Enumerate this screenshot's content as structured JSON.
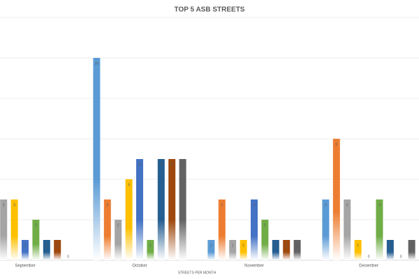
{
  "chart_data": {
    "type": "bar",
    "title": "TOP 5 ASB STREETS",
    "x_label": "STREETS PER MONTH",
    "categories": [
      "September",
      "October",
      "November",
      "December"
    ],
    "series": [
      {
        "color": "#5b9bd5",
        "values": [
          null,
          10,
          1,
          3
        ]
      },
      {
        "color": "#ed7d31",
        "values": [
          null,
          3,
          3,
          6
        ]
      },
      {
        "color": "#a5a5a5",
        "values": [
          3,
          2,
          1,
          3
        ]
      },
      {
        "color": "#ffc000",
        "values": [
          3,
          4,
          1,
          1
        ]
      },
      {
        "color": "#4472c4",
        "values": [
          1,
          5,
          3,
          0
        ]
      },
      {
        "color": "#70ad47",
        "values": [
          2,
          1,
          2,
          3
        ]
      },
      {
        "color": "#255e91",
        "values": [
          1,
          5,
          1,
          1
        ]
      },
      {
        "color": "#9e480e",
        "values": [
          1,
          5,
          1,
          0
        ]
      },
      {
        "color": "#636363",
        "values": [
          0,
          5,
          1,
          1
        ]
      }
    ],
    "ylim": [
      0,
      12
    ],
    "yticks": [
      0,
      2,
      4,
      6,
      8,
      10,
      12
    ],
    "grid": true
  }
}
